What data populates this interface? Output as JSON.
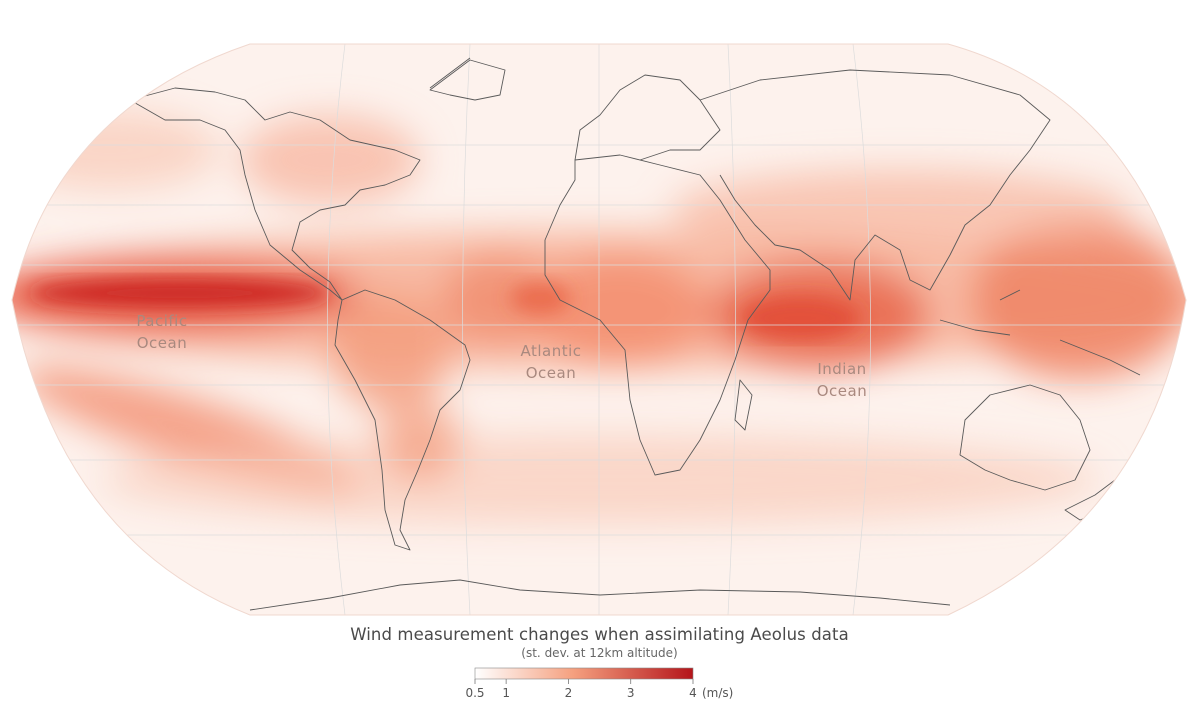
{
  "title": "Wind measurement changes when assimilating Aeolus data",
  "subtitle": "(st. dev. at 12km altitude)",
  "ocean_labels": [
    {
      "line1": "Pacific",
      "line2": "Ocean"
    },
    {
      "line1": "Atlantic",
      "line2": "Ocean"
    },
    {
      "line1": "Indian",
      "line2": "Ocean"
    }
  ],
  "legend": {
    "ticks": [
      "0.5",
      "1",
      "2",
      "3",
      "4"
    ],
    "unit": "(m/s)",
    "min": 0.5,
    "max": 4,
    "color_low": "#ffffff",
    "color_mid": "#f5a07f",
    "color_high": "#b4141a"
  },
  "colors": {
    "coastline": "#5a5a5a",
    "graticule": "#d8d8d8",
    "background": "#fdf2ed"
  }
}
